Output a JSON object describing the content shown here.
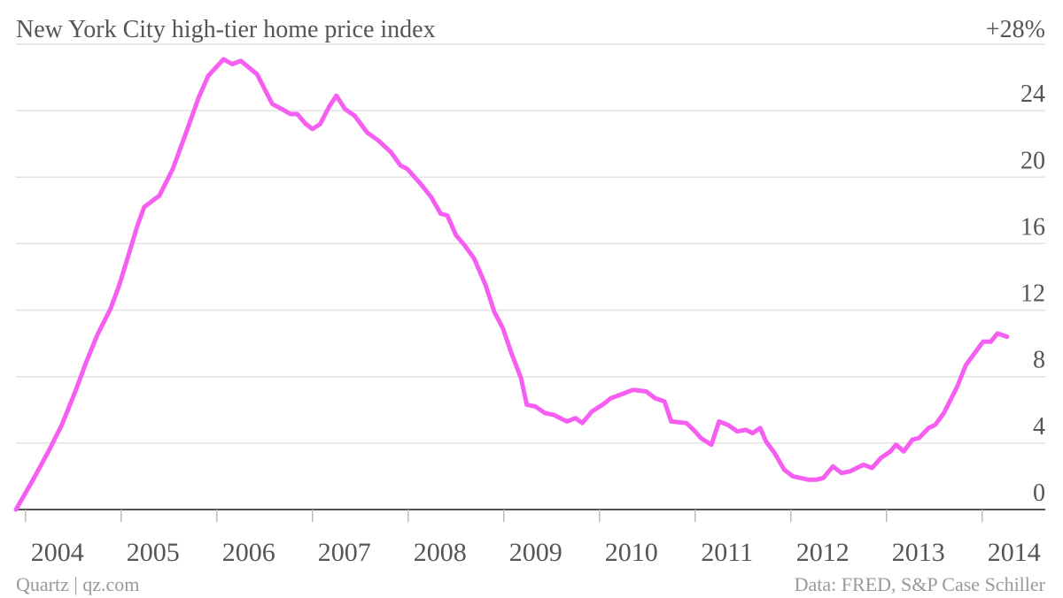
{
  "chart_data": {
    "type": "line",
    "title": "New York City high-tier home price index",
    "source": "Data: FRED, S&P Case Schiller",
    "credit": "Quartz | qz.com",
    "xlim": [
      2003.9,
      2014.66
    ],
    "xticks": [
      2004,
      2005,
      2006,
      2007,
      2008,
      2009,
      2010,
      2011,
      2012,
      2013,
      2014
    ],
    "ylim": [
      0,
      28
    ],
    "yticks": [
      0,
      4,
      8,
      12,
      16,
      20,
      24,
      {
        "value": 28,
        "label": "+28%"
      }
    ],
    "grid": true,
    "series": [
      {
        "color": "#f55ef0",
        "x": [
          2003.9,
          2004.06,
          2004.24,
          2004.38,
          2004.52,
          2004.63,
          2004.75,
          2004.89,
          2004.98,
          2005.07,
          2005.17,
          2005.24,
          2005.4,
          2005.54,
          2005.68,
          2005.81,
          2005.91,
          2006.07,
          2006.16,
          2006.25,
          2006.42,
          2006.58,
          2006.68,
          2006.77,
          2006.84,
          2006.93,
          2007.0,
          2007.08,
          2007.18,
          2007.25,
          2007.34,
          2007.44,
          2007.57,
          2007.69,
          2007.82,
          2007.92,
          2007.99,
          2008.13,
          2008.24,
          2008.34,
          2008.41,
          2008.5,
          2008.59,
          2008.69,
          2008.81,
          2008.9,
          2008.99,
          2009.08,
          2009.18,
          2009.24,
          2009.33,
          2009.43,
          2009.52,
          2009.66,
          2009.75,
          2009.82,
          2009.92,
          2010.03,
          2010.12,
          2010.26,
          2010.35,
          2010.49,
          2010.58,
          2010.68,
          2010.75,
          2010.91,
          2011.0,
          2011.06,
          2011.17,
          2011.25,
          2011.34,
          2011.44,
          2011.53,
          2011.6,
          2011.68,
          2011.74,
          2011.83,
          2011.93,
          2012.02,
          2012.18,
          2012.27,
          2012.34,
          2012.44,
          2012.53,
          2012.62,
          2012.76,
          2012.85,
          2012.94,
          2013.04,
          2013.1,
          2013.18,
          2013.27,
          2013.34,
          2013.44,
          2013.51,
          2013.6,
          2013.74,
          2013.83,
          2013.92,
          2014.01,
          2014.09,
          2014.16,
          2014.26
        ],
        "values": [
          0,
          1.6,
          3.5,
          5.1,
          7.1,
          8.8,
          10.5,
          12.1,
          13.5,
          15.2,
          17.1,
          18.2,
          18.9,
          20.5,
          22.7,
          24.8,
          26.1,
          27.1,
          26.8,
          27.0,
          26.2,
          24.4,
          24.1,
          23.8,
          23.8,
          23.2,
          22.9,
          23.2,
          24.3,
          24.9,
          24.1,
          23.7,
          22.7,
          22.2,
          21.5,
          20.7,
          20.5,
          19.6,
          18.8,
          17.8,
          17.7,
          16.5,
          15.9,
          15.1,
          13.5,
          11.9,
          10.9,
          9.4,
          7.9,
          6.3,
          6.2,
          5.8,
          5.7,
          5.3,
          5.5,
          5.2,
          5.9,
          6.3,
          6.7,
          7.0,
          7.2,
          7.1,
          6.7,
          6.5,
          5.3,
          5.2,
          4.7,
          4.3,
          3.9,
          5.3,
          5.1,
          4.7,
          4.8,
          4.6,
          4.9,
          4.1,
          3.4,
          2.4,
          2.0,
          1.8,
          1.8,
          1.9,
          2.6,
          2.2,
          2.3,
          2.7,
          2.5,
          3.1,
          3.5,
          3.9,
          3.5,
          4.2,
          4.3,
          4.9,
          5.1,
          5.8,
          7.4,
          8.7,
          9.4,
          10.1,
          10.1,
          10.6,
          10.4
        ]
      }
    ]
  }
}
